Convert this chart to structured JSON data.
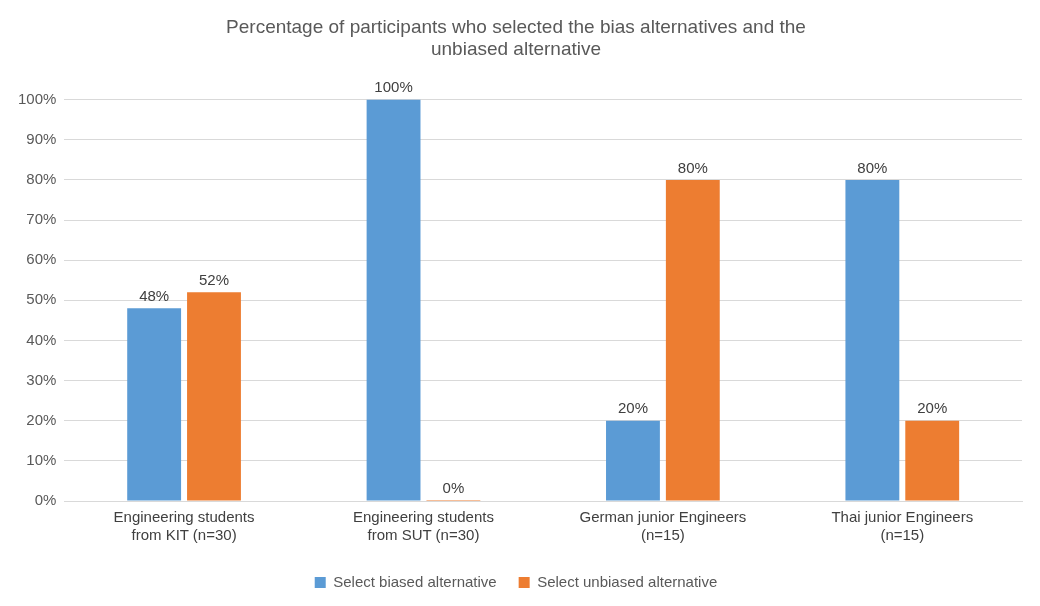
{
  "chart_data": {
    "type": "bar",
    "title": "Percentage of participants who selected the bias alternatives and the unbiased alternative",
    "categories": [
      "Engineering students from KIT (n=30)",
      "Engineering students from SUT (n=30)",
      "German junior Engineers (n=15)",
      "Thai junior Engineers (n=15)"
    ],
    "series": [
      {
        "name": "Select biased alternative",
        "color": "#5b9bd5",
        "values": [
          48,
          100,
          20,
          80
        ],
        "value_labels": [
          "48%",
          "100%",
          "20%",
          "80%"
        ]
      },
      {
        "name": "Select unbiased alternative",
        "color": "#ed7d31",
        "values": [
          52,
          0,
          80,
          20
        ],
        "value_labels": [
          "52%",
          "0%",
          "80%",
          "20%"
        ]
      }
    ],
    "ylim": [
      0,
      100
    ],
    "yticks": [
      {
        "value": 0,
        "label": "0%"
      },
      {
        "value": 10,
        "label": "10%"
      },
      {
        "value": 20,
        "label": "20%"
      },
      {
        "value": 30,
        "label": "30%"
      },
      {
        "value": 40,
        "label": "40%"
      },
      {
        "value": 50,
        "label": "50%"
      },
      {
        "value": 60,
        "label": "60%"
      },
      {
        "value": 70,
        "label": "70%"
      },
      {
        "value": 80,
        "label": "80%"
      },
      {
        "value": 90,
        "label": "90%"
      },
      {
        "value": 100,
        "label": "100%"
      }
    ],
    "grid": "y",
    "legend": "bottom"
  }
}
